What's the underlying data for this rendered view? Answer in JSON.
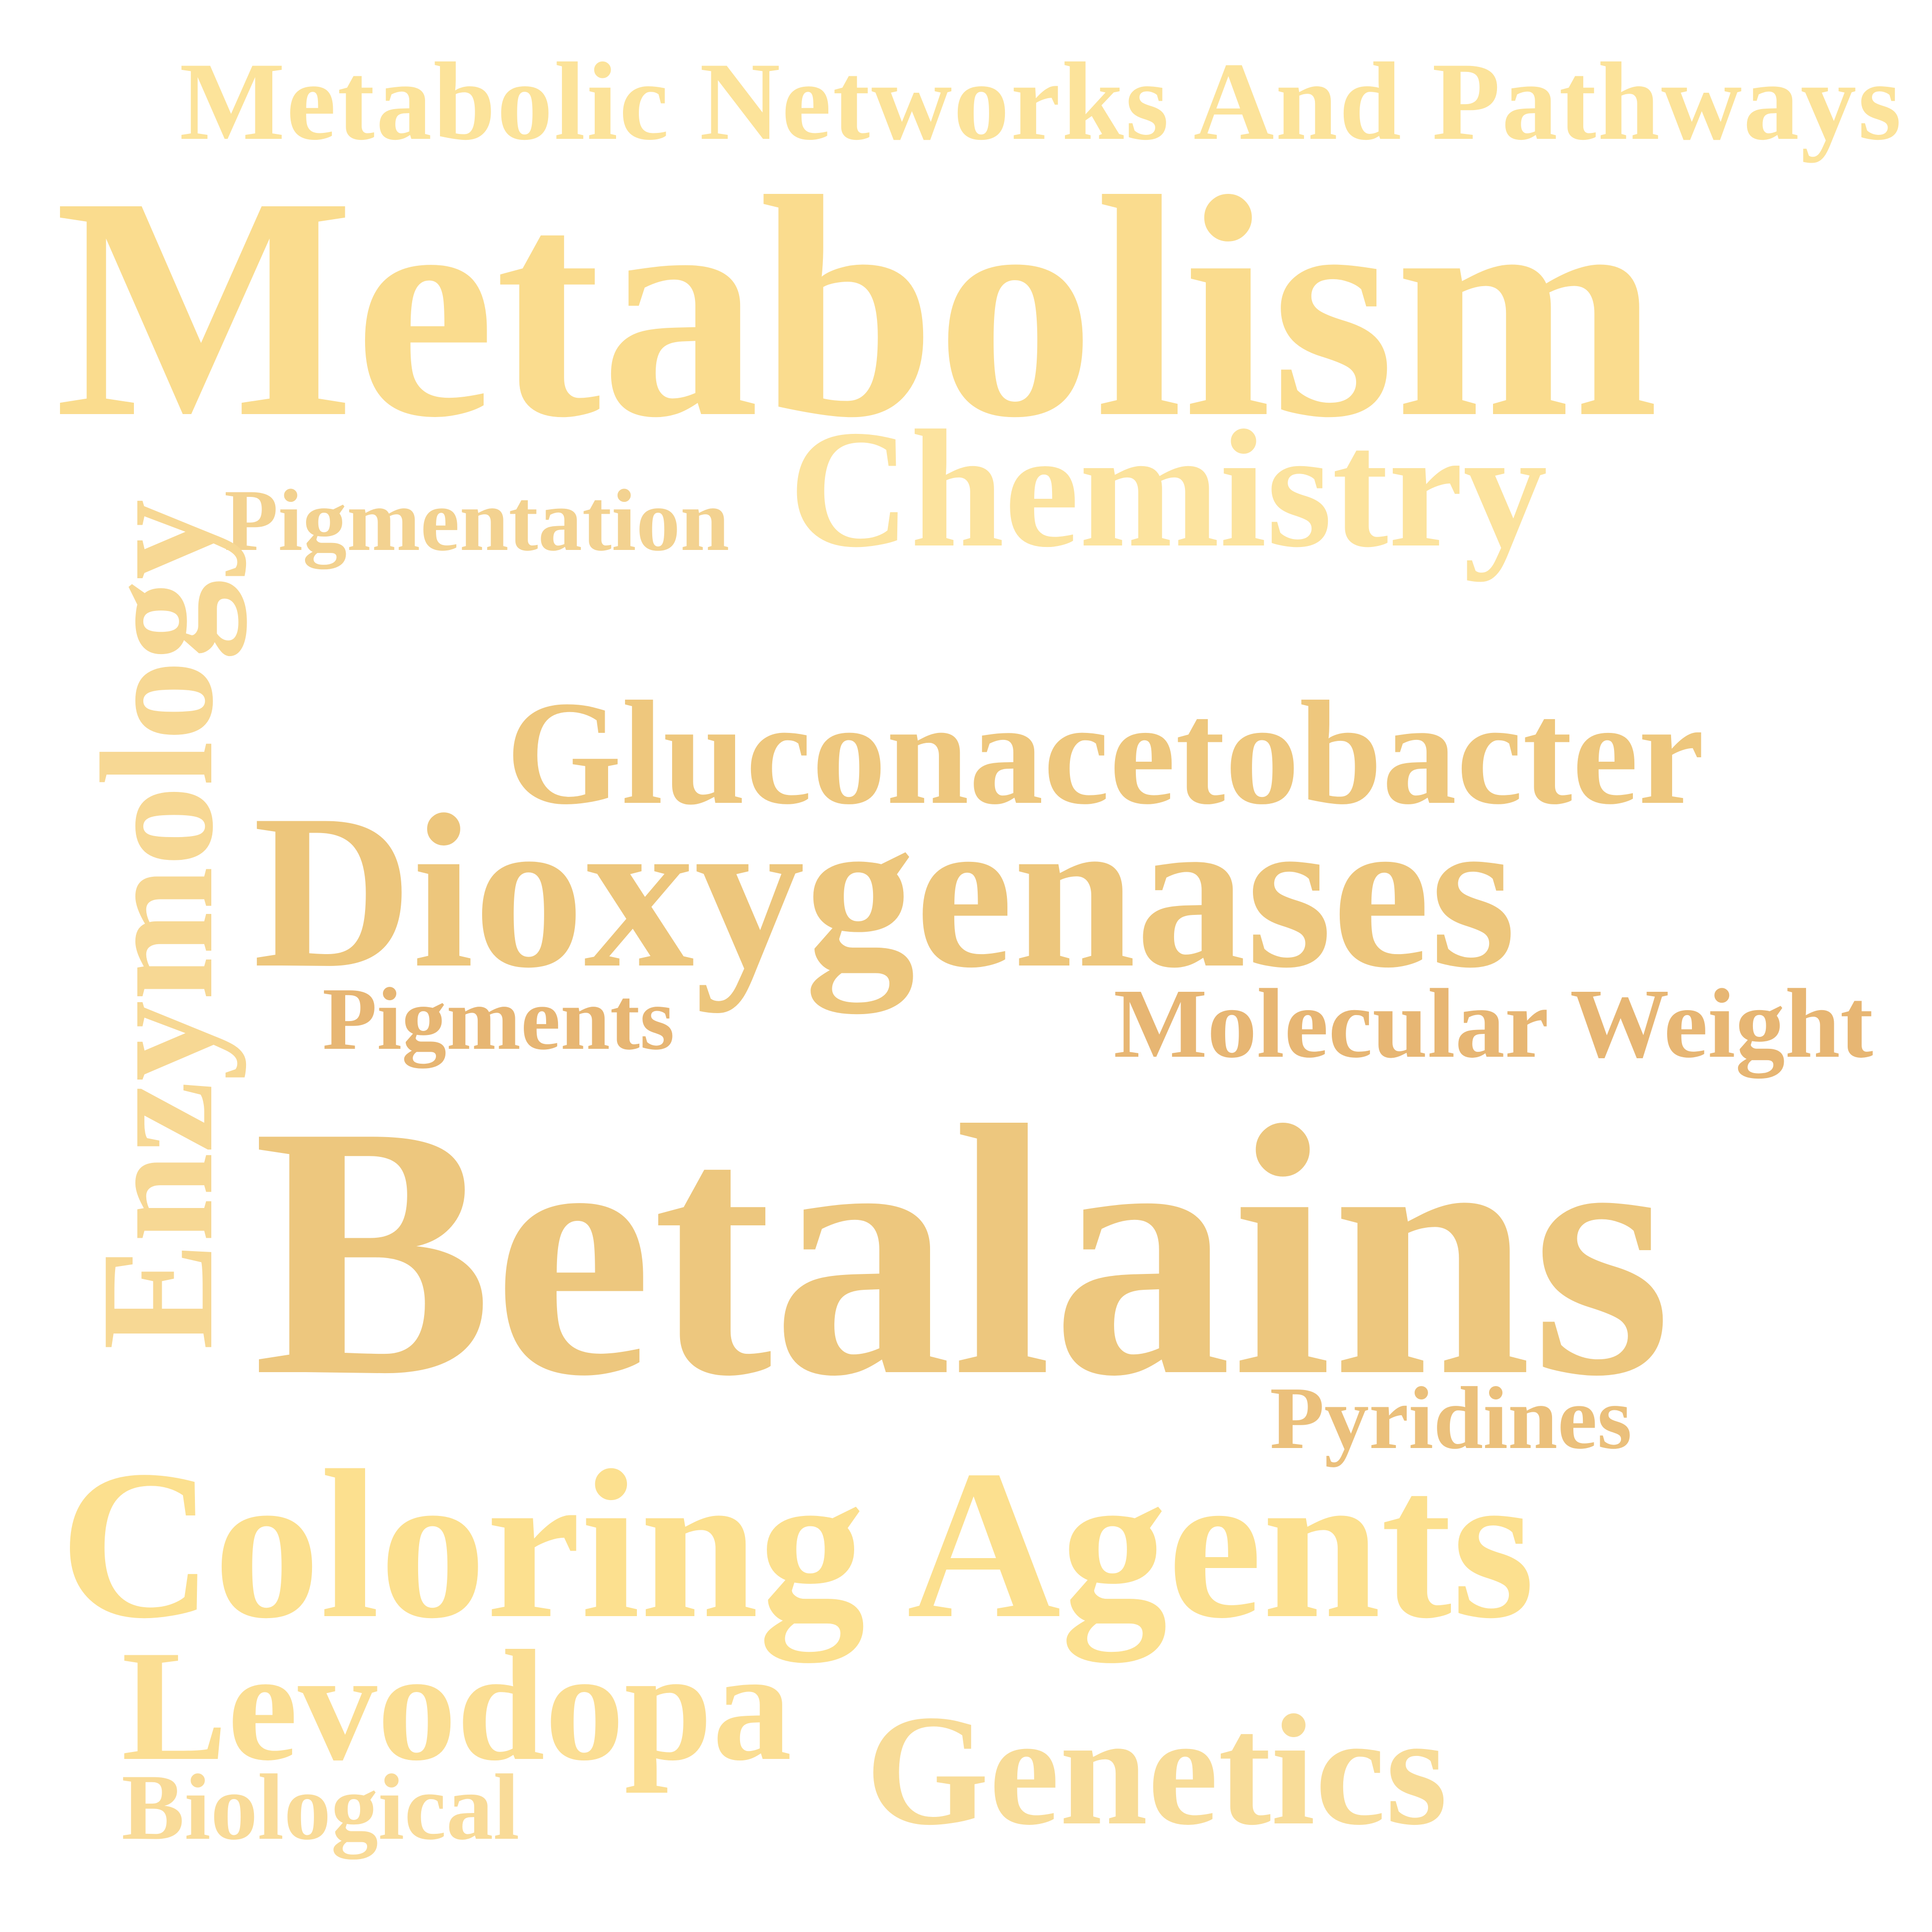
{
  "word_cloud": {
    "words": [
      {
        "id": "metabolic-networks",
        "text": "Metabolic Networks And Pathways",
        "color": "#FCE39A"
      },
      {
        "id": "metabolism",
        "text": "Metabolism",
        "color": "#FADC8E"
      },
      {
        "id": "chemistry",
        "text": "Chemistry",
        "color": "#FCE39E"
      },
      {
        "id": "pigmentation",
        "text": "Pigmentation",
        "color": "#F3D290"
      },
      {
        "id": "enzymology",
        "text": "Enzymology",
        "color": "#F7D894"
      },
      {
        "id": "gluconacetobacter",
        "text": "Gluconacetobacter",
        "color": "#EEC77D"
      },
      {
        "id": "dioxygenases",
        "text": "Dioxygenases",
        "color": "#EDC67C"
      },
      {
        "id": "pigments",
        "text": "Pigments",
        "color": "#E7B673"
      },
      {
        "id": "molecular-weight",
        "text": "Molecular Weight",
        "color": "#E7B673"
      },
      {
        "id": "betalains",
        "text": "Betalains",
        "color": "#EDC77E"
      },
      {
        "id": "pyridines",
        "text": "Pyridines",
        "color": "#EBC07B"
      },
      {
        "id": "coloring-agents",
        "text": "Coloring Agents",
        "color": "#FCE08F"
      },
      {
        "id": "levodopa",
        "text": "Levodopa",
        "color": "#FBDE93"
      },
      {
        "id": "genetics",
        "text": "Genetics",
        "color": "#F8DC98"
      },
      {
        "id": "biological",
        "text": "Biological",
        "color": "#F9DB98"
      }
    ]
  }
}
